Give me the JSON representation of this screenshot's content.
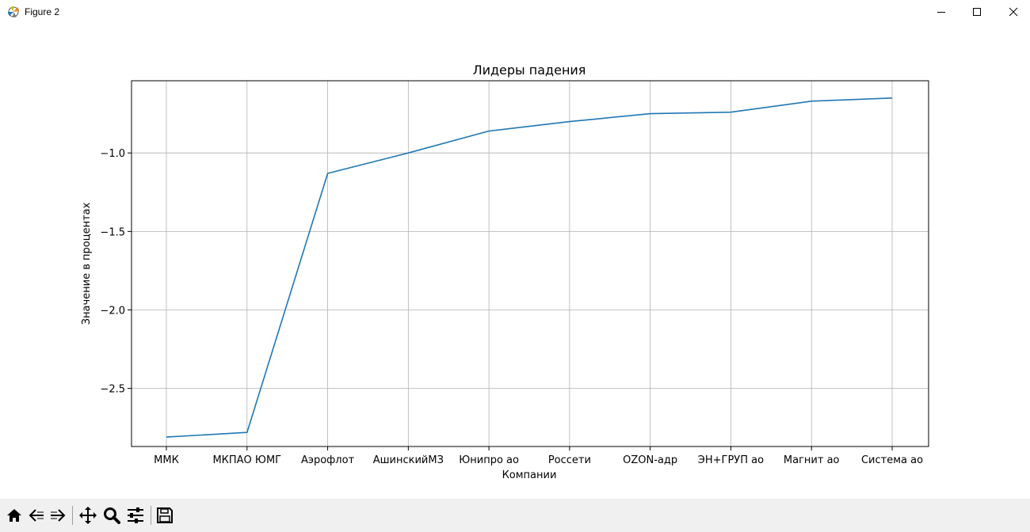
{
  "window": {
    "title": "Figure 2",
    "icon": "matplotlib-icon",
    "controls": [
      "minimize-icon",
      "maximize-icon",
      "close-icon"
    ]
  },
  "toolbar": {
    "buttons": [
      "home-icon",
      "back-icon",
      "forward-icon",
      "pan-icon",
      "zoom-icon",
      "configure-subplots-icon",
      "save-icon"
    ]
  },
  "chart_data": {
    "type": "line",
    "title": "Лидеры падения",
    "xlabel": "Компании",
    "ylabel": "Значение в процентах",
    "categories": [
      "ММК",
      "МКПАО ЮМГ",
      "Аэрофлот",
      "АшинскийМЗ",
      "Юнипро ао",
      "Россети",
      "OZON-адр",
      "ЭН+ГРУП ао",
      "Магнит ао",
      "Система ао"
    ],
    "series": [
      {
        "name": "",
        "values": [
          -2.81,
          -2.78,
          -1.13,
          -1.0,
          -0.86,
          -0.8,
          -0.75,
          -0.74,
          -0.67,
          -0.65
        ],
        "color": "#1f77b4"
      }
    ],
    "ylim": [
      -2.87,
      -0.54
    ],
    "yticks": [
      -2.5,
      -2.0,
      -1.5,
      -1.0
    ],
    "ytick_labels": [
      "−2.5",
      "−2.0",
      "−1.5",
      "−1.0"
    ],
    "grid": true,
    "legend": "none"
  }
}
